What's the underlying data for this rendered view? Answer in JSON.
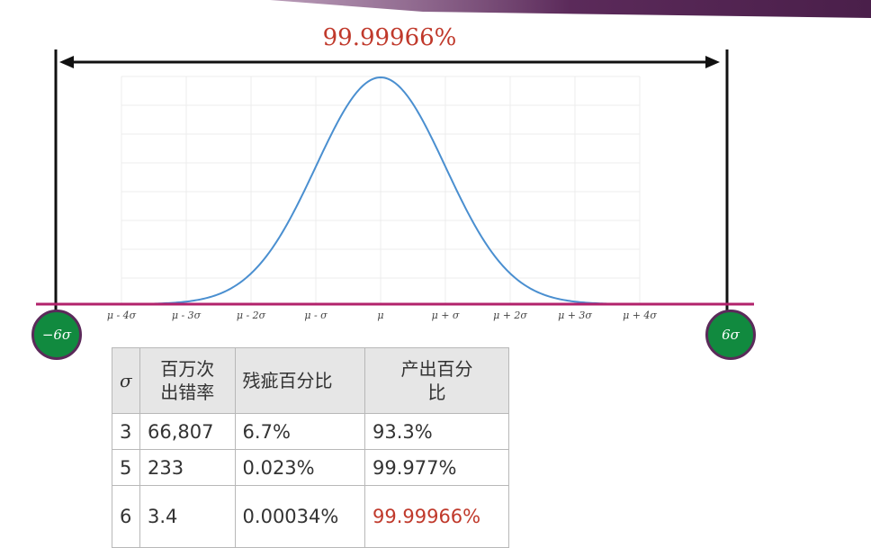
{
  "colors": {
    "accent_red": "#c0392b",
    "baseline": "#b2226b",
    "curve": "#4a8fd0",
    "circle_fill": "#118a3f",
    "circle_border": "#5b2a5a",
    "top_band": "#5b2a5a"
  },
  "diagram": {
    "span_label": "99.99966%",
    "left_circle_label": "−6σ",
    "right_circle_label": "6σ",
    "curve_type": "normal-distribution",
    "axis_labels": [
      "μ - 4σ",
      "μ - 3σ",
      "μ - 2σ",
      "μ - σ",
      "μ",
      "μ + σ",
      "μ + 2σ",
      "μ + 3σ",
      "μ + 4σ"
    ]
  },
  "table": {
    "headers": [
      "σ",
      "百万次\n出错率",
      "残疵百分比",
      "产出百分\n比"
    ],
    "rows": [
      [
        "3",
        "66,807",
        "6.7%",
        "93.3%"
      ],
      [
        "5",
        "233",
        "0.023%",
        "99.977%"
      ],
      [
        "6",
        "3.4",
        "0.00034%",
        "99.99966%"
      ]
    ]
  }
}
